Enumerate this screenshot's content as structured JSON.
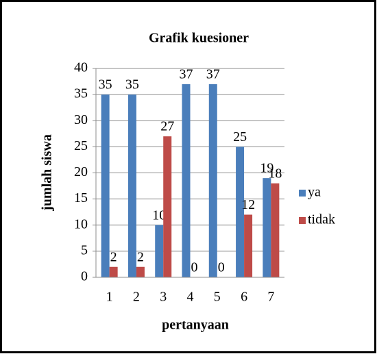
{
  "chart_data": {
    "type": "bar",
    "title": "Grafik kuesioner",
    "x_label": "pertanyaan",
    "y_label": "jumlah siswa",
    "categories": [
      "1",
      "2",
      "3",
      "4",
      "5",
      "6",
      "7"
    ],
    "series": [
      {
        "name": "ya",
        "color": "#4a7ebb",
        "values": [
          35,
          35,
          10,
          37,
          37,
          25,
          19
        ]
      },
      {
        "name": "tidak",
        "color": "#be4b48",
        "values": [
          2,
          2,
          27,
          0,
          0,
          12,
          18
        ]
      }
    ],
    "ylim": [
      0,
      40
    ],
    "yticks": [
      0,
      5,
      10,
      15,
      20,
      25,
      30,
      35,
      40
    ],
    "grid": true,
    "legend": "right"
  }
}
